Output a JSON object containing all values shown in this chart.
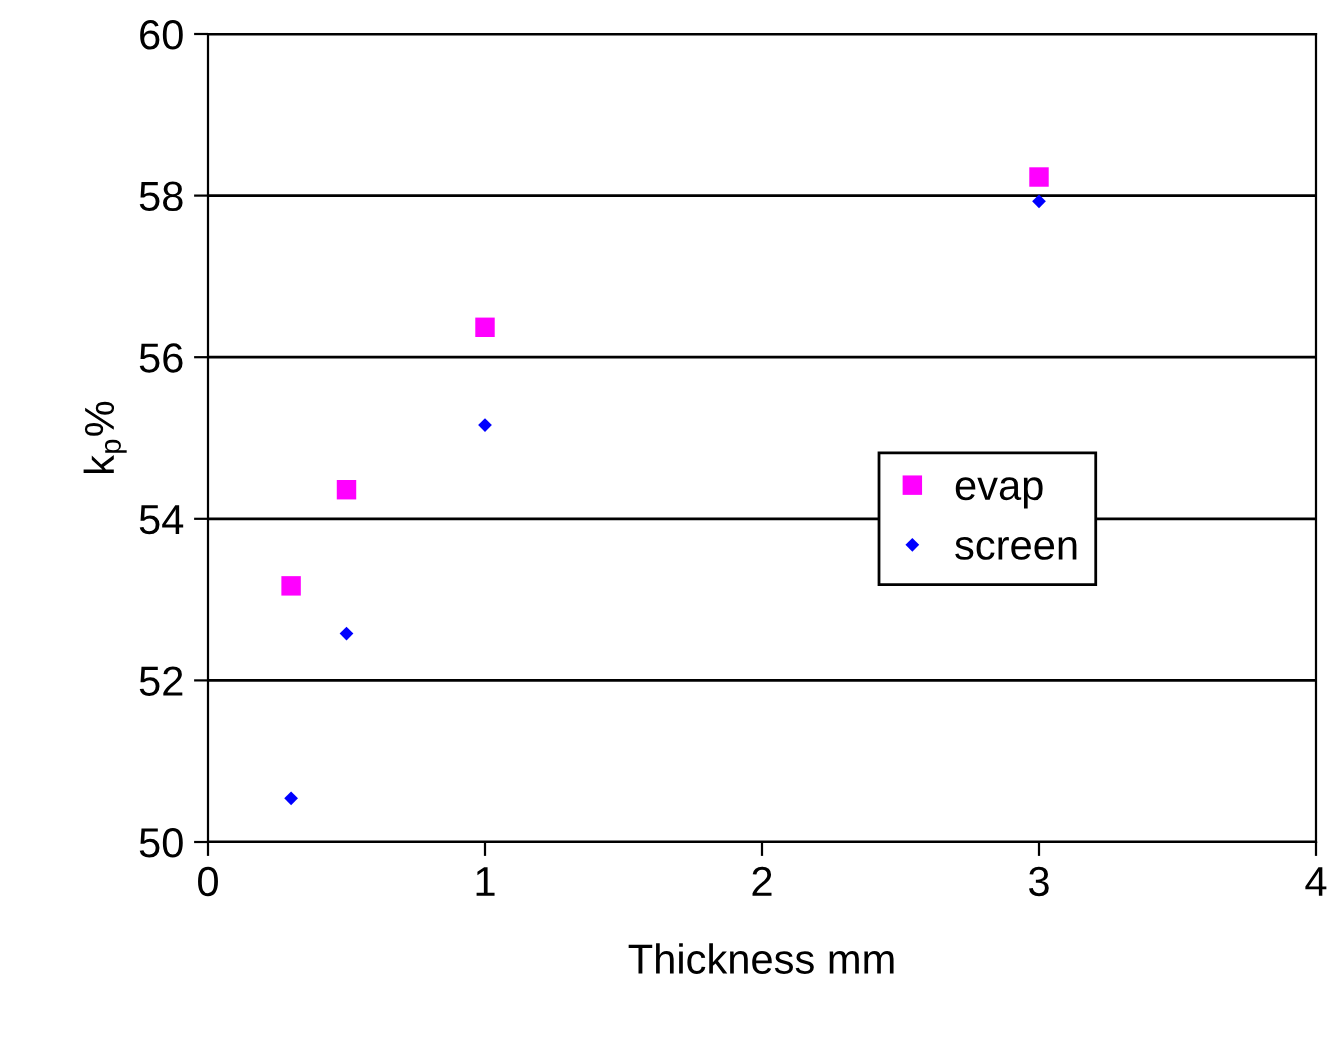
{
  "chart_data": {
    "type": "scatter",
    "xlabel": "Thickness mm",
    "ylabel": "k$_{p}$%",
    "xlim": [
      0,
      4
    ],
    "ylim": [
      50,
      60
    ],
    "xticks": [
      0,
      1,
      2,
      3,
      4
    ],
    "yticks": [
      50,
      52,
      54,
      56,
      58,
      60
    ],
    "grid": "y",
    "legend": "center right",
    "series": [
      {
        "name": "evap",
        "color": "#ff00ff",
        "marker": "square",
        "x": [
          0.3,
          0.5,
          1,
          3
        ],
        "values": [
          53.17,
          54.36,
          56.37,
          58.23
        ]
      },
      {
        "name": "screen",
        "color": "#0000ff",
        "marker": "diamond",
        "x": [
          0.3,
          0.5,
          1,
          3
        ],
        "values": [
          50.54,
          52.58,
          55.16,
          57.93
        ]
      }
    ]
  }
}
